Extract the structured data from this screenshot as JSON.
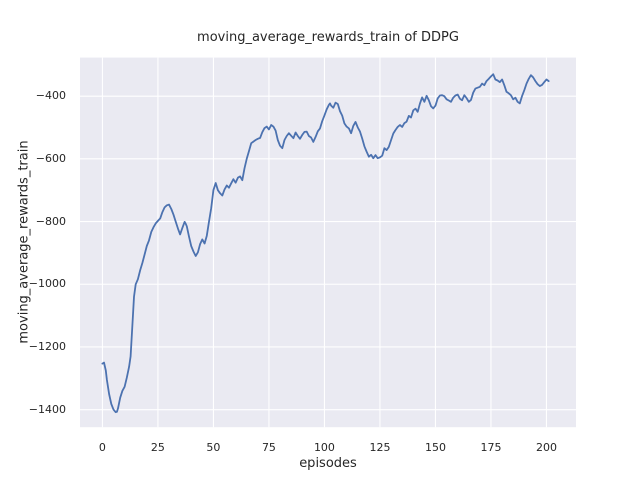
{
  "chart_data": {
    "type": "line",
    "title": "moving_average_rewards_train of DDPG",
    "xlabel": "episodes",
    "ylabel": "moving_average_rewards_train",
    "x_ticks": [
      0,
      25,
      50,
      75,
      100,
      125,
      150,
      175,
      200
    ],
    "y_ticks": [
      -400,
      -600,
      -800,
      -1000,
      -1200,
      -1400
    ],
    "xlim": [
      -10.1,
      213.3
    ],
    "ylim": [
      -1456,
      -277
    ],
    "grid": true,
    "legend": "none",
    "style": "seaborn-darkgrid",
    "colors": {
      "line": "#4c72b0",
      "axes_background": "#eaeaf2",
      "grid": "#ffffff",
      "text": "#262626",
      "figure_background": "#ffffff"
    },
    "series": [
      {
        "name": "moving_average_rewards_train",
        "points": [
          [
            0,
            -1253
          ],
          [
            0.7,
            -1250
          ],
          [
            1.5,
            -1275
          ],
          [
            2,
            -1305
          ],
          [
            3,
            -1350
          ],
          [
            4,
            -1382
          ],
          [
            5,
            -1400
          ],
          [
            6,
            -1408
          ],
          [
            6.5,
            -1407
          ],
          [
            7,
            -1396
          ],
          [
            8,
            -1362
          ],
          [
            9,
            -1340
          ],
          [
            10,
            -1327
          ],
          [
            11,
            -1298
          ],
          [
            12,
            -1263
          ],
          [
            12.7,
            -1230
          ],
          [
            13.5,
            -1130
          ],
          [
            14.2,
            -1040
          ],
          [
            15,
            -1000
          ],
          [
            16,
            -984
          ],
          [
            17,
            -955
          ],
          [
            18,
            -932
          ],
          [
            19,
            -905
          ],
          [
            20,
            -878
          ],
          [
            21,
            -860
          ],
          [
            22,
            -833
          ],
          [
            23,
            -818
          ],
          [
            24,
            -806
          ],
          [
            25,
            -798
          ],
          [
            26,
            -790
          ],
          [
            27,
            -770
          ],
          [
            28,
            -755
          ],
          [
            29,
            -748
          ],
          [
            30,
            -746
          ],
          [
            31,
            -760
          ],
          [
            32,
            -778
          ],
          [
            33,
            -800
          ],
          [
            34,
            -822
          ],
          [
            35,
            -841
          ],
          [
            36,
            -820
          ],
          [
            37,
            -801
          ],
          [
            37.5,
            -807
          ],
          [
            38,
            -815
          ],
          [
            39,
            -848
          ],
          [
            40,
            -878
          ],
          [
            41,
            -896
          ],
          [
            42,
            -910
          ],
          [
            43,
            -898
          ],
          [
            44,
            -872
          ],
          [
            45,
            -857
          ],
          [
            46,
            -870
          ],
          [
            47,
            -845
          ],
          [
            48,
            -800
          ],
          [
            49,
            -757
          ],
          [
            50,
            -700
          ],
          [
            51,
            -677
          ],
          [
            52,
            -700
          ],
          [
            53,
            -710
          ],
          [
            54,
            -717
          ],
          [
            55,
            -698
          ],
          [
            56,
            -685
          ],
          [
            57,
            -692
          ],
          [
            58,
            -678
          ],
          [
            59,
            -665
          ],
          [
            60,
            -676
          ],
          [
            61,
            -660
          ],
          [
            62,
            -656
          ],
          [
            63,
            -668
          ],
          [
            64,
            -630
          ],
          [
            65,
            -600
          ],
          [
            66,
            -575
          ],
          [
            67,
            -550
          ],
          [
            68,
            -545
          ],
          [
            69,
            -540
          ],
          [
            70,
            -536
          ],
          [
            71,
            -533
          ],
          [
            72,
            -515
          ],
          [
            73,
            -502
          ],
          [
            74,
            -497
          ],
          [
            75,
            -506
          ],
          [
            76,
            -492
          ],
          [
            77,
            -497
          ],
          [
            78,
            -510
          ],
          [
            79,
            -540
          ],
          [
            80,
            -558
          ],
          [
            81,
            -566
          ],
          [
            82,
            -540
          ],
          [
            83,
            -527
          ],
          [
            84,
            -518
          ],
          [
            85,
            -526
          ],
          [
            86,
            -534
          ],
          [
            87,
            -516
          ],
          [
            88,
            -527
          ],
          [
            89,
            -536
          ],
          [
            90,
            -524
          ],
          [
            91,
            -514
          ],
          [
            92,
            -513
          ],
          [
            93,
            -527
          ],
          [
            94,
            -532
          ],
          [
            95,
            -546
          ],
          [
            96,
            -530
          ],
          [
            97,
            -512
          ],
          [
            98,
            -503
          ],
          [
            99,
            -480
          ],
          [
            100,
            -462
          ],
          [
            101,
            -442
          ],
          [
            102,
            -428
          ],
          [
            102.5,
            -423
          ],
          [
            103,
            -430
          ],
          [
            104,
            -437
          ],
          [
            105,
            -421
          ],
          [
            106,
            -425
          ],
          [
            107,
            -448
          ],
          [
            108,
            -462
          ],
          [
            109,
            -487
          ],
          [
            110,
            -497
          ],
          [
            111,
            -503
          ],
          [
            112,
            -518
          ],
          [
            113,
            -495
          ],
          [
            114,
            -482
          ],
          [
            115,
            -500
          ],
          [
            116,
            -513
          ],
          [
            117,
            -535
          ],
          [
            118,
            -560
          ],
          [
            119,
            -577
          ],
          [
            120,
            -593
          ],
          [
            121,
            -587
          ],
          [
            122,
            -598
          ],
          [
            123,
            -588
          ],
          [
            124,
            -598
          ],
          [
            125,
            -595
          ],
          [
            126,
            -590
          ],
          [
            127,
            -566
          ],
          [
            128,
            -572
          ],
          [
            129,
            -562
          ],
          [
            130,
            -540
          ],
          [
            131,
            -519
          ],
          [
            132,
            -508
          ],
          [
            133,
            -498
          ],
          [
            134,
            -492
          ],
          [
            135,
            -498
          ],
          [
            136,
            -486
          ],
          [
            137,
            -481
          ],
          [
            138,
            -463
          ],
          [
            139,
            -468
          ],
          [
            140,
            -445
          ],
          [
            141,
            -440
          ],
          [
            142,
            -450
          ],
          [
            143,
            -424
          ],
          [
            144,
            -404
          ],
          [
            145,
            -418
          ],
          [
            146,
            -399
          ],
          [
            147,
            -413
          ],
          [
            148,
            -432
          ],
          [
            149,
            -439
          ],
          [
            150,
            -430
          ],
          [
            151,
            -407
          ],
          [
            152,
            -398
          ],
          [
            153,
            -397
          ],
          [
            154,
            -400
          ],
          [
            155,
            -410
          ],
          [
            156,
            -414
          ],
          [
            157,
            -418
          ],
          [
            158,
            -405
          ],
          [
            159,
            -398
          ],
          [
            160,
            -395
          ],
          [
            161,
            -408
          ],
          [
            162,
            -413
          ],
          [
            163,
            -397
          ],
          [
            164,
            -406
          ],
          [
            165,
            -418
          ],
          [
            166,
            -412
          ],
          [
            167,
            -389
          ],
          [
            168,
            -376
          ],
          [
            169,
            -373
          ],
          [
            170,
            -370
          ],
          [
            171,
            -360
          ],
          [
            172,
            -365
          ],
          [
            173,
            -352
          ],
          [
            174,
            -345
          ],
          [
            175,
            -337
          ],
          [
            176,
            -330
          ],
          [
            177,
            -347
          ],
          [
            178,
            -350
          ],
          [
            179,
            -355
          ],
          [
            180,
            -347
          ],
          [
            181,
            -365
          ],
          [
            182,
            -386
          ],
          [
            183,
            -391
          ],
          [
            184,
            -397
          ],
          [
            185,
            -410
          ],
          [
            186,
            -405
          ],
          [
            187,
            -418
          ],
          [
            188,
            -423
          ],
          [
            189,
            -400
          ],
          [
            190,
            -381
          ],
          [
            191,
            -360
          ],
          [
            192,
            -345
          ],
          [
            193,
            -333
          ],
          [
            194,
            -340
          ],
          [
            195,
            -352
          ],
          [
            196,
            -362
          ],
          [
            197,
            -368
          ],
          [
            198,
            -364
          ],
          [
            199,
            -355
          ],
          [
            200,
            -347
          ],
          [
            201,
            -352
          ]
        ]
      }
    ]
  }
}
